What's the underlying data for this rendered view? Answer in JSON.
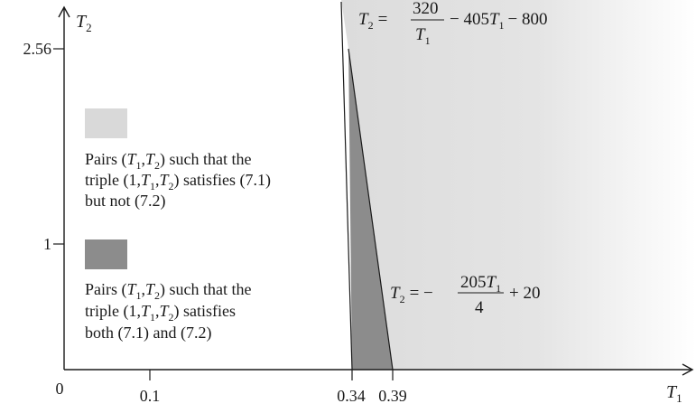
{
  "axes": {
    "x": {
      "var": "T",
      "sub": "1",
      "origin_label": "0",
      "ticks": [
        {
          "label": "0.1"
        },
        {
          "label": "0.34"
        },
        {
          "label": "0.39"
        }
      ]
    },
    "y": {
      "var": "T",
      "sub": "2",
      "ticks": [
        {
          "label": "2.56"
        },
        {
          "label": "1"
        }
      ]
    }
  },
  "curves": {
    "upper": {
      "lhs": "T",
      "lhs_sub": "2",
      "eq": "=",
      "num": "320",
      "den_var": "T",
      "den_sub": "1",
      "rest_a": "− 405",
      "rest_var": "T",
      "rest_sub": "1",
      "rest_b": "− 800"
    },
    "lower": {
      "lhs": "T",
      "lhs_sub": "2",
      "eq": "= −",
      "num": "205",
      "num_var": "T",
      "num_sub": "1",
      "den": "4",
      "rest": "+ 20"
    }
  },
  "legend": [
    {
      "color": "#d9d9d9",
      "line1_pre": "Pairs (",
      "v1": "T",
      "s1": "1",
      "comma": ",",
      "v2": "T",
      "s2": "2",
      "line1_post": ") such that the",
      "line2_pre": "triple (1,",
      "v3": "T",
      "s3": "1",
      "comma2": ",",
      "v4": "T",
      "s4": "2",
      "line2_post": ") satisfies (7.1)",
      "line3": "but not (7.2)"
    },
    {
      "color": "#8c8c8c",
      "line1_pre": "Pairs (",
      "v1": "T",
      "s1": "1",
      "comma": ",",
      "v2": "T",
      "s2": "2",
      "line1_post": ") such that the",
      "line2_pre": "triple (1,",
      "v3": "T",
      "s3": "1",
      "comma2": ",",
      "v4": "T",
      "s4": "2",
      "line2_post": ") satisfies",
      "line3": "both (7.1) and (7.2)"
    }
  ],
  "colors": {
    "light_region": "#d9d9d9",
    "dark_region": "#8c8c8c",
    "axis": "#1a1a1a"
  }
}
